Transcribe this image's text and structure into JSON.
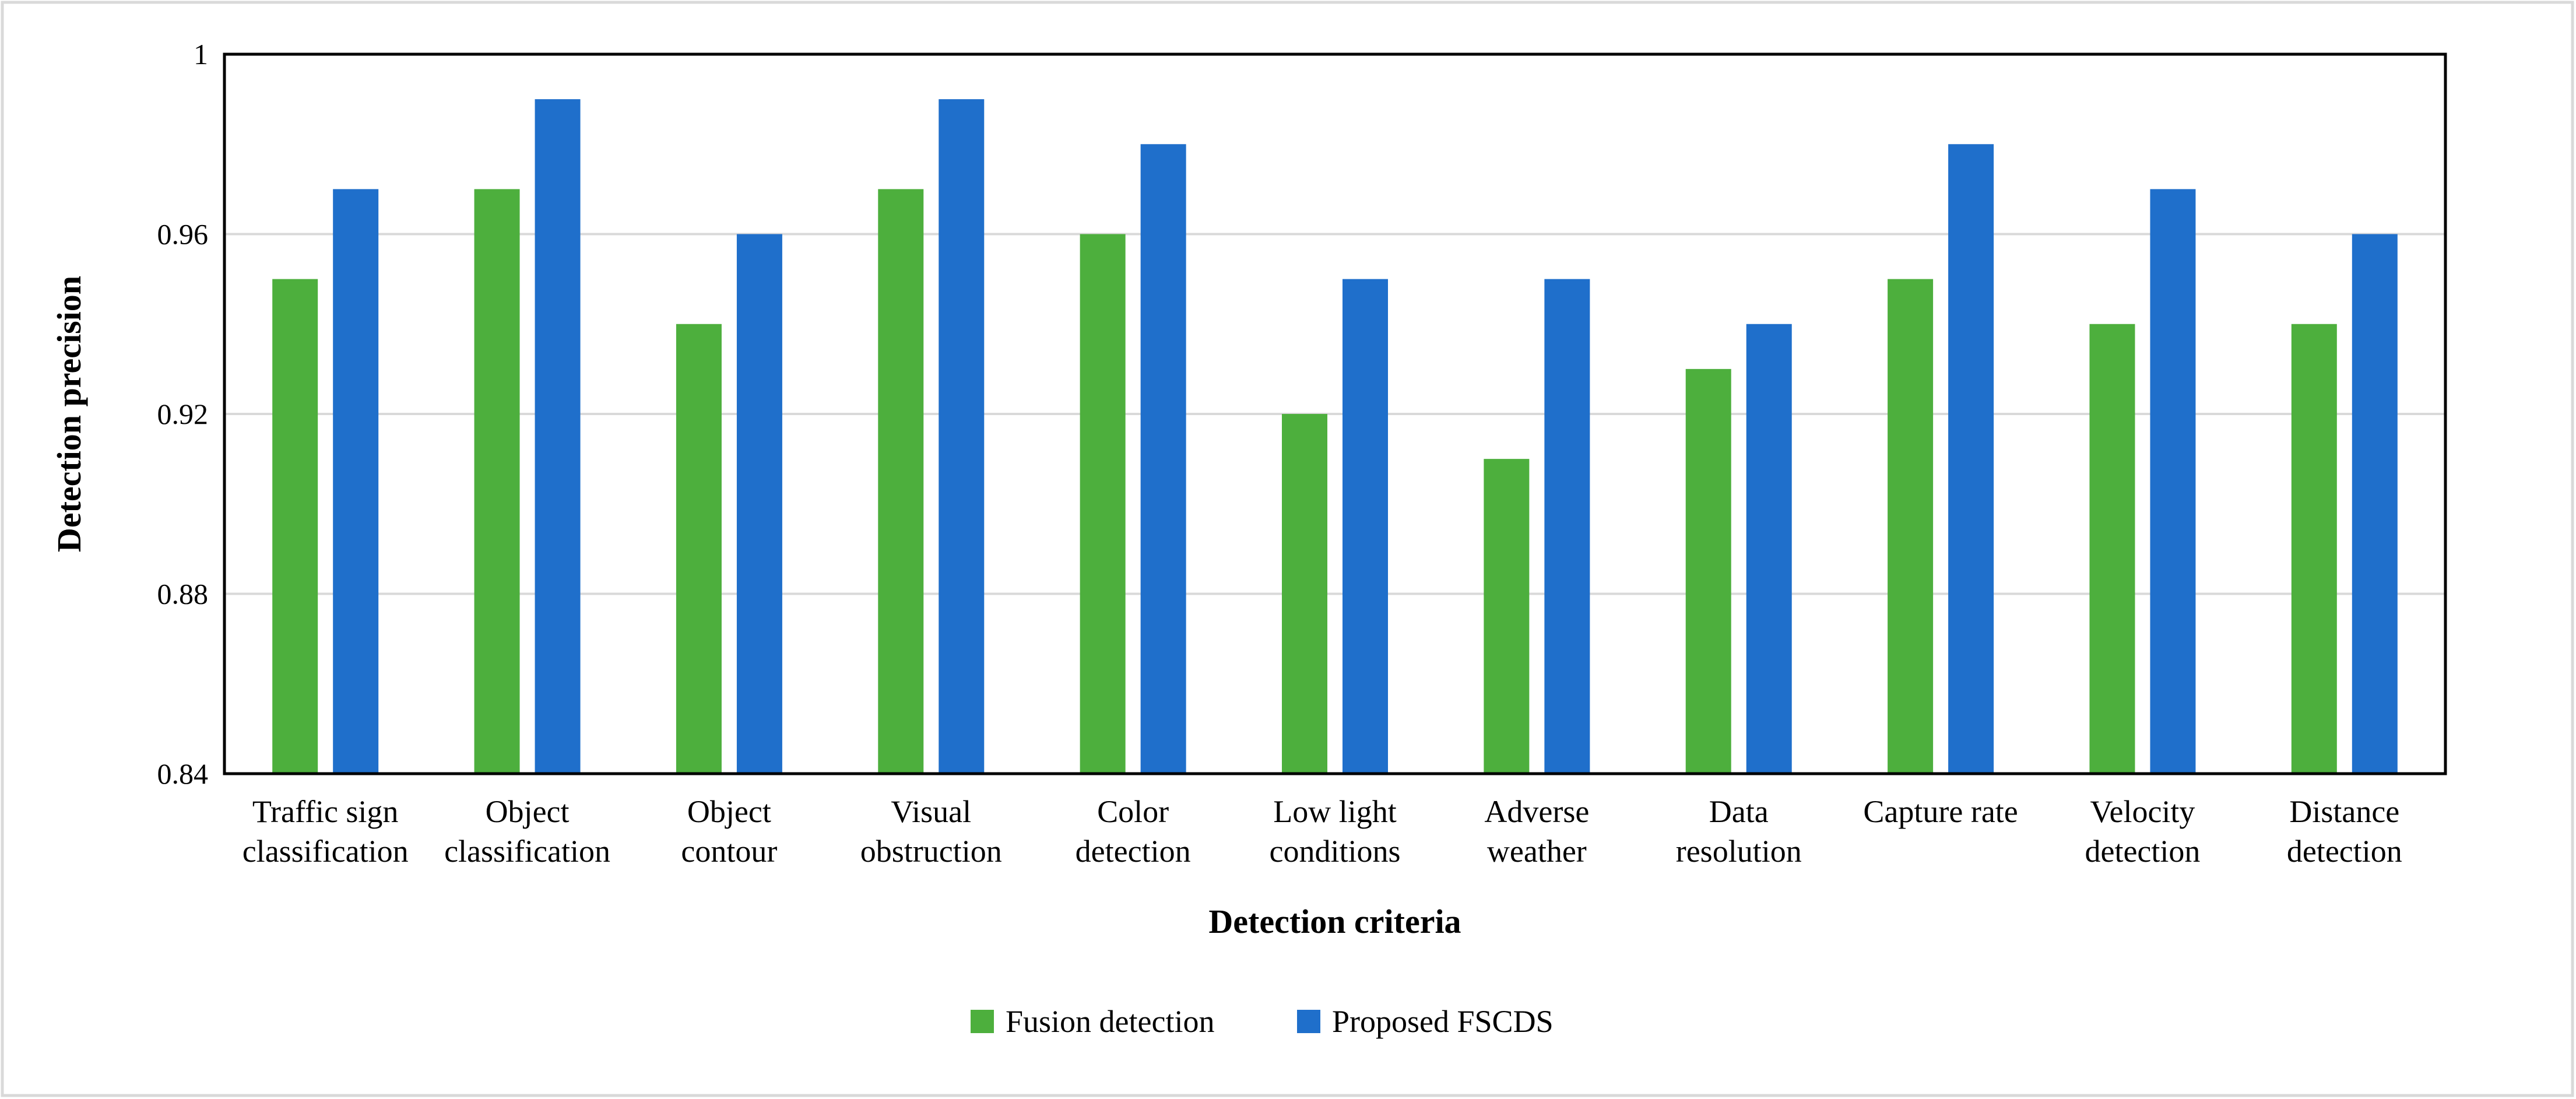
{
  "colors": {
    "series_0": "#4DAF3D",
    "series_1": "#1F6FCB",
    "gridline": "#D9D9D9",
    "axis": "#000000"
  },
  "chart_data": {
    "type": "bar",
    "title": "",
    "xlabel": "Detection criteria",
    "ylabel": "Detection precision",
    "ylim": [
      0.84,
      1.0
    ],
    "yticks": [
      "0.84",
      "0.88",
      "0.92",
      "0.96",
      "1"
    ],
    "grid": true,
    "legend_position": "bottom",
    "categories": [
      [
        "Traffic sign",
        "classification"
      ],
      [
        "Object",
        "classification"
      ],
      [
        "Object",
        "contour"
      ],
      [
        "Visual",
        "obstruction"
      ],
      [
        "Color",
        "detection"
      ],
      [
        "Low light",
        "conditions"
      ],
      [
        "Adverse",
        "weather"
      ],
      [
        "Data",
        "resolution"
      ],
      [
        "Capture rate"
      ],
      [
        "Velocity",
        "detection"
      ],
      [
        "Distance",
        "detection"
      ]
    ],
    "series": [
      {
        "name": "Fusion detection",
        "values": [
          0.95,
          0.97,
          0.94,
          0.97,
          0.96,
          0.92,
          0.91,
          0.93,
          0.95,
          0.94,
          0.94
        ]
      },
      {
        "name": "Proposed FSCDS",
        "values": [
          0.97,
          0.99,
          0.96,
          0.99,
          0.98,
          0.95,
          0.95,
          0.94,
          0.98,
          0.97,
          0.96
        ]
      }
    ]
  }
}
